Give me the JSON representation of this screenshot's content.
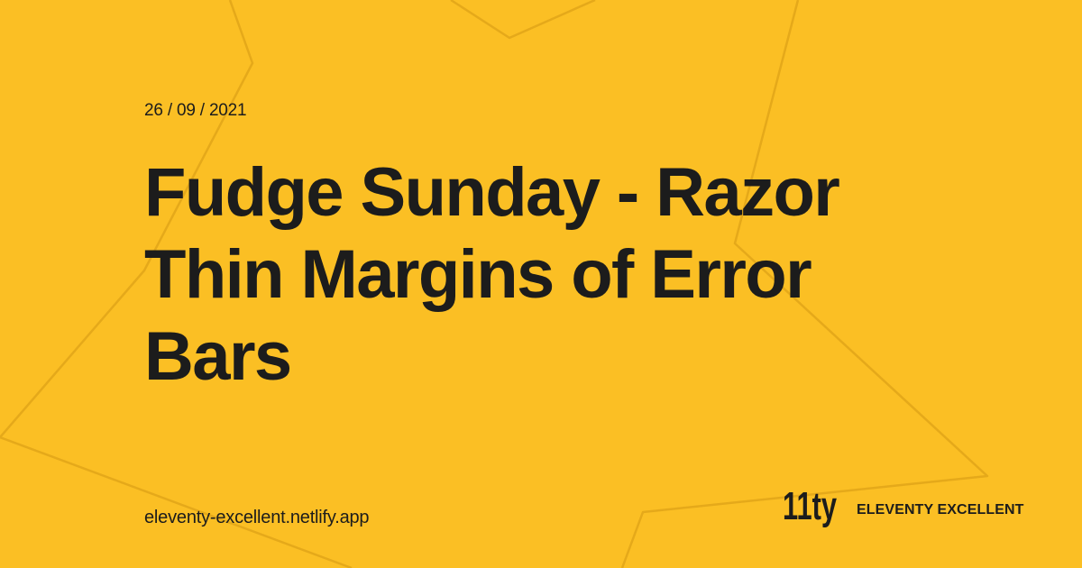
{
  "post": {
    "date": "26 / 09 / 2021",
    "title": "Fudge Sunday - Razor Thin Margins of Error Bars"
  },
  "footer": {
    "site_url": "eleventy-excellent.netlify.app",
    "brand_name": "ELEVENTY EXCELLENT",
    "logo_text": "11ty",
    "logo_icon": "eleventy-logo-icon"
  },
  "colors": {
    "background": "#FBBF24",
    "text": "#1C1C1C",
    "shape_stroke": "#E5A91A"
  }
}
